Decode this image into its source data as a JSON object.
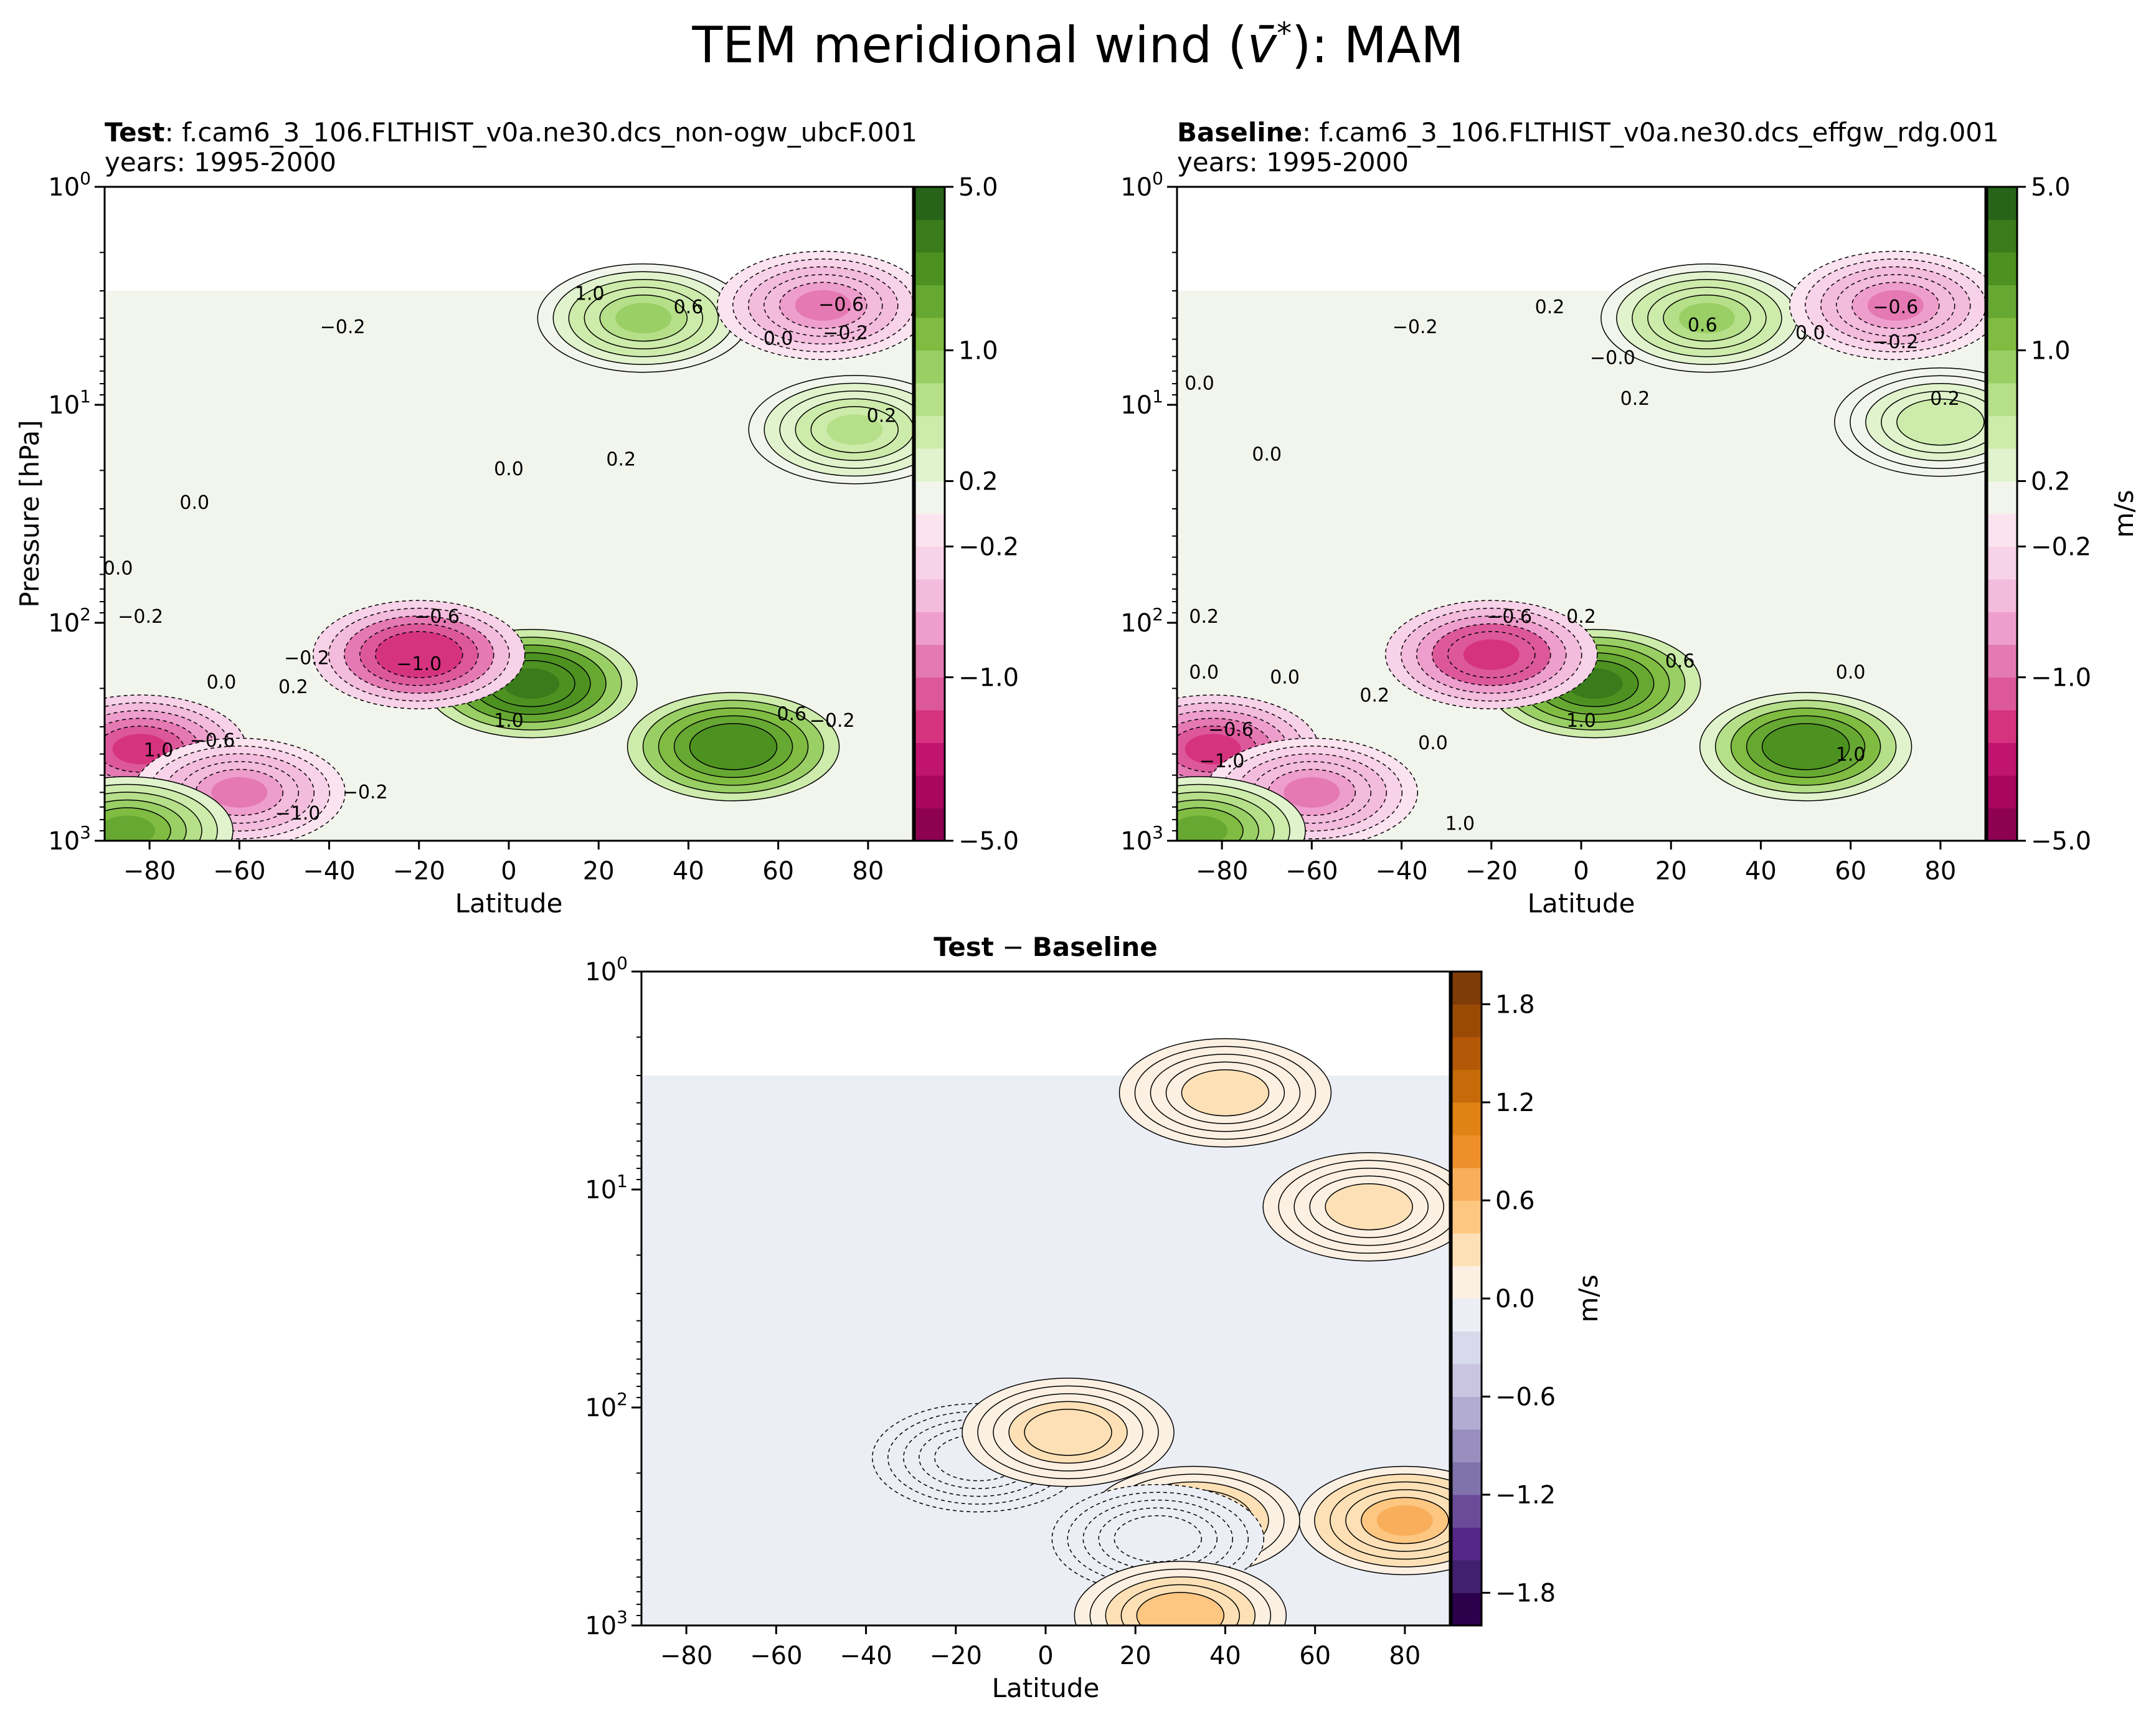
{
  "figure": {
    "title_main": "TEM meridional wind (",
    "title_symbol": "v̄",
    "title_sup": "*",
    "title_end": "): MAM"
  },
  "colors": {
    "piyg": [
      "#8e0152",
      "#a8065f",
      "#c0146f",
      "#d6337f",
      "#dd589b",
      "#e579b3",
      "#ee9ecc",
      "#f3bbdc",
      "#f8d2e8",
      "#fbe3f0",
      "#f2f5ec",
      "#e0f3cc",
      "#cdebaa",
      "#b6df89",
      "#99cf65",
      "#7fbc41",
      "#67a833",
      "#4d9221",
      "#3a7c1b",
      "#276419"
    ],
    "puor": [
      "#2d004b",
      "#422070",
      "#542788",
      "#6a4b98",
      "#8073ac",
      "#998fbf",
      "#b2abd2",
      "#c9c4e0",
      "#d8daeb",
      "#eceef6",
      "#fbf0e1",
      "#fde0b6",
      "#fdc681",
      "#f8ae5b",
      "#ee8f2c",
      "#e08214",
      "#c66a0a",
      "#b35806",
      "#9a4a05",
      "#7f3b08"
    ]
  },
  "chart_data": [
    {
      "type": "heatmap",
      "panel": "test",
      "title_bold": "Test",
      "title_rest": ": f.cam6_3_106.FLTHIST_v0a.ne30.dcs_non-ogw_ubcF.001",
      "years": "years: 1995-2000",
      "xlabel": "Latitude",
      "ylabel": "Pressure [hPa]",
      "xlim": [
        -90,
        90
      ],
      "ylim_hpa": [
        1000,
        1
      ],
      "data_top_hpa": 3,
      "x_ticks": [
        "−80",
        "−60",
        "−40",
        "−20",
        "0",
        "20",
        "40",
        "60",
        "80"
      ],
      "y_ticks": [
        {
          "b": "10",
          "e": "0"
        },
        {
          "b": "10",
          "e": "1"
        },
        {
          "b": "10",
          "e": "2"
        },
        {
          "b": "10",
          "e": "3"
        }
      ],
      "colorbar": {
        "ticks": [
          "5.0",
          "1.0",
          "0.2",
          "−0.2",
          "−1.0",
          "−5.0"
        ],
        "label": ""
      },
      "features": [
        {
          "lat": 5,
          "p": 190,
          "v": 2.8
        },
        {
          "lat": 50,
          "p": 370,
          "v": 2.5
        },
        {
          "lat": 30,
          "p": 4,
          "v": 0.8
        },
        {
          "lat": 77,
          "p": 13,
          "v": 0.7
        },
        {
          "lat": -20,
          "p": 140,
          "v": -1.6
        },
        {
          "lat": -82,
          "p": 380,
          "v": -1.3
        },
        {
          "lat": -60,
          "p": 600,
          "v": -0.8
        },
        {
          "lat": 70,
          "p": 3.5,
          "v": -0.8
        },
        {
          "lat": -85,
          "p": 900,
          "v": 1.5
        }
      ],
      "contour_labels": [
        {
          "t": "1.0",
          "lat": 18,
          "p": 3.3
        },
        {
          "t": "0.6",
          "lat": 40,
          "p": 3.8
        },
        {
          "t": "−0.2",
          "lat": -37,
          "p": 4.7
        },
        {
          "t": "−0.6",
          "lat": 74,
          "p": 3.7
        },
        {
          "t": "−0.2",
          "lat": 75,
          "p": 5
        },
        {
          "t": "0.0",
          "lat": 60,
          "p": 5.3
        },
        {
          "t": "0.2",
          "lat": 83,
          "p": 12
        },
        {
          "t": "0.0",
          "lat": 0,
          "p": 21
        },
        {
          "t": "0.2",
          "lat": 25,
          "p": 19
        },
        {
          "t": "0.0",
          "lat": -70,
          "p": 30
        },
        {
          "t": "0.0",
          "lat": -87,
          "p": 60
        },
        {
          "t": "−0.2",
          "lat": -82,
          "p": 100
        },
        {
          "t": "−0.6",
          "lat": -16,
          "p": 100
        },
        {
          "t": "−1.0",
          "lat": -20,
          "p": 165
        },
        {
          "t": "−0.2",
          "lat": -45,
          "p": 155
        },
        {
          "t": "0.0",
          "lat": -64,
          "p": 200
        },
        {
          "t": "0.2",
          "lat": -48,
          "p": 210
        },
        {
          "t": "1.0",
          "lat": 0,
          "p": 300
        },
        {
          "t": "0.6",
          "lat": 63,
          "p": 280
        },
        {
          "t": "−0.2",
          "lat": 72,
          "p": 300
        },
        {
          "t": "1.0",
          "lat": -78,
          "p": 410
        },
        {
          "t": "−0.6",
          "lat": -66,
          "p": 370
        },
        {
          "t": "−0.2",
          "lat": -32,
          "p": 640
        },
        {
          "t": "−1.0",
          "lat": -47,
          "p": 800
        }
      ]
    },
    {
      "type": "heatmap",
      "panel": "baseline",
      "title_bold": "Baseline",
      "title_rest": ": f.cam6_3_106.FLTHIST_v0a.ne30.dcs_effgw_rdg.001",
      "years": "years: 1995-2000",
      "xlabel": "Latitude",
      "ylabel": "",
      "xlim": [
        -90,
        90
      ],
      "ylim_hpa": [
        1000,
        1
      ],
      "data_top_hpa": 3,
      "x_ticks": [
        "−80",
        "−60",
        "−40",
        "−20",
        "0",
        "20",
        "40",
        "60",
        "80"
      ],
      "y_ticks": [
        {
          "b": "10",
          "e": "0"
        },
        {
          "b": "10",
          "e": "1"
        },
        {
          "b": "10",
          "e": "2"
        },
        {
          "b": "10",
          "e": "3"
        }
      ],
      "colorbar": {
        "ticks": [
          "5.0",
          "1.0",
          "0.2",
          "−0.2",
          "−1.0",
          "−5.0"
        ],
        "label": "m/s"
      },
      "features": [
        {
          "lat": 3,
          "p": 190,
          "v": 2.6
        },
        {
          "lat": 50,
          "p": 370,
          "v": 2.3
        },
        {
          "lat": 28,
          "p": 4,
          "v": 0.8
        },
        {
          "lat": 80,
          "p": 12,
          "v": 0.6
        },
        {
          "lat": -20,
          "p": 140,
          "v": -1.5
        },
        {
          "lat": -82,
          "p": 380,
          "v": -1.3
        },
        {
          "lat": -60,
          "p": 600,
          "v": -0.8
        },
        {
          "lat": 70,
          "p": 3.5,
          "v": -0.8
        },
        {
          "lat": -85,
          "p": 900,
          "v": 1.5
        }
      ],
      "contour_labels": [
        {
          "t": "0.2",
          "lat": -7,
          "p": 3.8
        },
        {
          "t": "0.6",
          "lat": 27,
          "p": 4.6
        },
        {
          "t": "−0.2",
          "lat": -37,
          "p": 4.7
        },
        {
          "t": "−0.6",
          "lat": 70,
          "p": 3.8
        },
        {
          "t": "−0.2",
          "lat": 70,
          "p": 5.5
        },
        {
          "t": "0.0",
          "lat": 51,
          "p": 5
        },
        {
          "t": "−0.0",
          "lat": 7,
          "p": 6.5
        },
        {
          "t": "0.2",
          "lat": 12,
          "p": 10
        },
        {
          "t": "0.0",
          "lat": -85,
          "p": 8.5
        },
        {
          "t": "0.0",
          "lat": -70,
          "p": 18
        },
        {
          "t": "0.2",
          "lat": 81,
          "p": 10
        },
        {
          "t": "0.2",
          "lat": -84,
          "p": 100
        },
        {
          "t": "−0.6",
          "lat": -16,
          "p": 100
        },
        {
          "t": "0.2",
          "lat": 0,
          "p": 100
        },
        {
          "t": "0.6",
          "lat": 22,
          "p": 160
        },
        {
          "t": "0.0",
          "lat": -84,
          "p": 180
        },
        {
          "t": "0.0",
          "lat": -66,
          "p": 190
        },
        {
          "t": "0.0",
          "lat": 60,
          "p": 180
        },
        {
          "t": "0.2",
          "lat": -46,
          "p": 230
        },
        {
          "t": "1.0",
          "lat": 0,
          "p": 300
        },
        {
          "t": "1.0",
          "lat": 60,
          "p": 430
        },
        {
          "t": "0.0",
          "lat": -33,
          "p": 380
        },
        {
          "t": "−1.0",
          "lat": -80,
          "p": 460
        },
        {
          "t": "−0.6",
          "lat": -78,
          "p": 330
        },
        {
          "t": "1.0",
          "lat": -27,
          "p": 890
        }
      ]
    },
    {
      "type": "heatmap",
      "panel": "difference",
      "title_bold": "Test",
      "title_mid": " − ",
      "title_bold2": "Baseline",
      "xlabel": "Latitude",
      "ylabel": "",
      "xlim": [
        -90,
        90
      ],
      "ylim_hpa": [
        1000,
        1
      ],
      "data_top_hpa": 3,
      "x_ticks": [
        "−80",
        "−60",
        "−40",
        "−20",
        "0",
        "20",
        "40",
        "60",
        "80"
      ],
      "y_ticks": [
        {
          "b": "10",
          "e": "0"
        },
        {
          "b": "10",
          "e": "1"
        },
        {
          "b": "10",
          "e": "2"
        },
        {
          "b": "10",
          "e": "3"
        }
      ],
      "colorbar": {
        "ticks": [
          "1.8",
          "1.2",
          "0.6",
          "0.0",
          "−0.6",
          "−1.2",
          "−1.8"
        ],
        "label": "m/s"
      },
      "features": [
        {
          "lat": 40,
          "p": 3.6,
          "v": 0.25
        },
        {
          "lat": 72,
          "p": 12,
          "v": 0.25
        },
        {
          "lat": 80,
          "p": 330,
          "v": 0.6
        },
        {
          "lat": 33,
          "p": 330,
          "v": 0.45
        },
        {
          "lat": -15,
          "p": 170,
          "v": -0.15
        },
        {
          "lat": 25,
          "p": 400,
          "v": -0.2
        },
        {
          "lat": 5,
          "p": 130,
          "v": 0.3
        },
        {
          "lat": 30,
          "p": 900,
          "v": 0.5
        }
      ]
    }
  ]
}
